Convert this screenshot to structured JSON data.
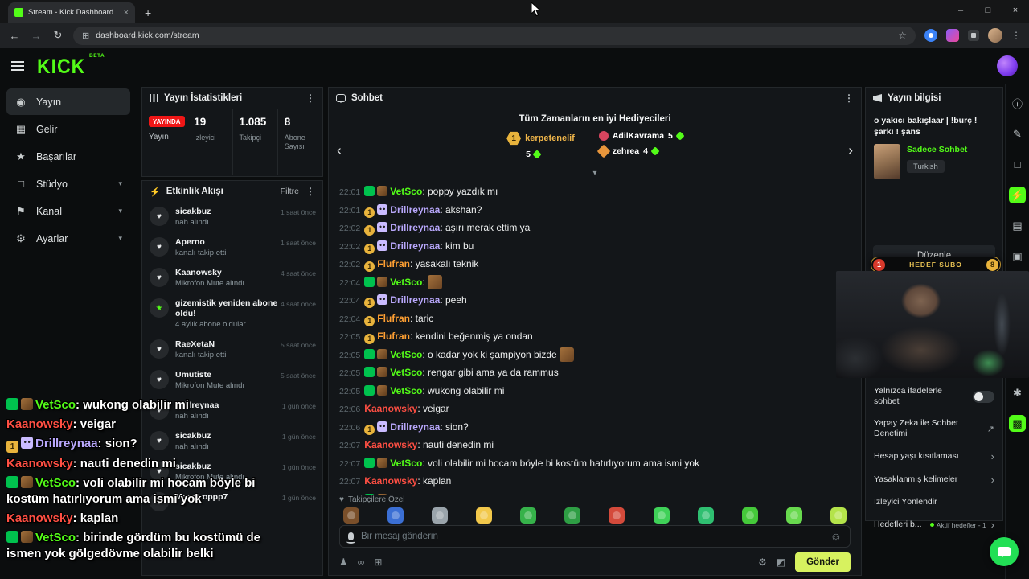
{
  "browser": {
    "tab_title": "Stream - Kick Dashboard",
    "url": "dashboard.kick.com/stream"
  },
  "app": {
    "logo": "KICK",
    "beta": "BETA"
  },
  "sidebar": {
    "items": [
      {
        "key": "yayin",
        "label": "Yayın",
        "glyph": "◉",
        "active": true,
        "chevron": false
      },
      {
        "key": "gelir",
        "label": "Gelir",
        "glyph": "▦",
        "active": false,
        "chevron": false
      },
      {
        "key": "basarilar",
        "label": "Başarılar",
        "glyph": "★",
        "active": false,
        "chevron": false
      },
      {
        "key": "studyo",
        "label": "Stüdyo",
        "glyph": "□",
        "active": false,
        "chevron": true
      },
      {
        "key": "kanal",
        "label": "Kanal",
        "glyph": "⚑",
        "active": false,
        "chevron": true
      },
      {
        "key": "ayarlar",
        "label": "Ayarlar",
        "glyph": "⚙",
        "active": false,
        "chevron": true
      }
    ]
  },
  "stats": {
    "title": "Yayın İstatistikleri",
    "live_badge": "YAYINDA",
    "live_label": "Yayın",
    "metrics": [
      {
        "value": "19",
        "label": "İzleyici"
      },
      {
        "value": "1.085",
        "label": "Takipçi"
      },
      {
        "value": "8",
        "label": "Abone Sayısı"
      }
    ]
  },
  "activity": {
    "title": "Etkinlik Akışı",
    "filter_label": "Filtre",
    "items": [
      {
        "icon": "heart",
        "user": "sicakbuz",
        "action": "nah alındı",
        "time": "1 saat önce"
      },
      {
        "icon": "heart",
        "user": "Aperno",
        "action": "kanalı takip etti",
        "time": "1 saat önce"
      },
      {
        "icon": "heart",
        "user": "Kaanowsky",
        "action": "Mikrofon Mute alındı",
        "time": "4 saat önce"
      },
      {
        "icon": "star",
        "user": "gizemistik yeniden abone oldu!",
        "action": "4 aylık abone oldular",
        "time": "4 saat önce"
      },
      {
        "icon": "heart",
        "user": "RaeXetaN",
        "action": "kanalı takip etti",
        "time": "5 saat önce"
      },
      {
        "icon": "heart",
        "user": "Umutiste",
        "action": "Mikrofon Mute alındı",
        "time": "5 saat önce"
      },
      {
        "icon": "heart",
        "user": "Drillreynaa",
        "action": "nah alındı",
        "time": "1 gün önce"
      },
      {
        "icon": "heart",
        "user": "sicakbuz",
        "action": "nah alındı",
        "time": "1 gün önce"
      },
      {
        "icon": "heart",
        "user": "sicakbuz",
        "action": "Mikrofon Mute alındı",
        "time": "1 gün önce"
      },
      {
        "icon": "heart",
        "user": "Maestroppp7",
        "action": "",
        "time": "1 gün önce"
      }
    ]
  },
  "chat": {
    "title": "Sohbet",
    "gifters": {
      "title": "Tüm Zamanların en iyi Hediyecileri",
      "top": {
        "rank": "1",
        "name": "kerpetenelif",
        "count": "5"
      },
      "others": [
        {
          "name": "AdilKavrama",
          "count": "5"
        },
        {
          "name": "zehrea",
          "count": "4"
        }
      ]
    },
    "messages": [
      {
        "time": "22:01",
        "user": "VetSco",
        "color": "#53fc18",
        "badges": [
          "mod",
          "pixel"
        ],
        "text": "poppy yazdık mı",
        "emote": false
      },
      {
        "time": "22:01",
        "user": "Drillreynaa",
        "color": "#b8a7fb",
        "badges": [
          "gift",
          "ghost"
        ],
        "text": "akshan?",
        "emote": false
      },
      {
        "time": "22:02",
        "user": "Drillreynaa",
        "color": "#b8a7fb",
        "badges": [
          "gift",
          "ghost"
        ],
        "text": "aşırı merak ettim ya",
        "emote": false
      },
      {
        "time": "22:02",
        "user": "Drillreynaa",
        "color": "#b8a7fb",
        "badges": [
          "gift",
          "ghost"
        ],
        "text": "kim bu",
        "emote": false
      },
      {
        "time": "22:02",
        "user": "Flufran",
        "color": "#ffa033",
        "badges": [
          "gift"
        ],
        "text": "yasakalı teknik",
        "emote": false
      },
      {
        "time": "22:04",
        "user": "VetSco",
        "color": "#53fc18",
        "badges": [
          "mod",
          "pixel"
        ],
        "text": "",
        "emote": true
      },
      {
        "time": "22:04",
        "user": "Drillreynaa",
        "color": "#b8a7fb",
        "badges": [
          "gift",
          "ghost"
        ],
        "text": "peeh",
        "emote": false
      },
      {
        "time": "22:04",
        "user": "Flufran",
        "color": "#ffa033",
        "badges": [
          "gift"
        ],
        "text": "taric",
        "emote": false
      },
      {
        "time": "22:05",
        "user": "Flufran",
        "color": "#ffa033",
        "badges": [
          "gift"
        ],
        "text": "kendini beğenmiş ya ondan",
        "emote": false
      },
      {
        "time": "22:05",
        "user": "VetSco",
        "color": "#53fc18",
        "badges": [
          "mod",
          "pixel"
        ],
        "text": "o kadar yok ki şampiyon bizde",
        "emote": true
      },
      {
        "time": "22:05",
        "user": "VetSco",
        "color": "#53fc18",
        "badges": [
          "mod",
          "pixel"
        ],
        "text": "rengar gibi ama ya da rammus",
        "emote": false
      },
      {
        "time": "22:05",
        "user": "VetSco",
        "color": "#53fc18",
        "badges": [
          "mod",
          "pixel"
        ],
        "text": "wukong olabilir mi",
        "emote": false
      },
      {
        "time": "22:06",
        "user": "Kaanowsky",
        "color": "#ff4f43",
        "badges": [],
        "text": "veigar",
        "emote": false
      },
      {
        "time": "22:06",
        "user": "Drillreynaa",
        "color": "#b8a7fb",
        "badges": [
          "gift",
          "ghost"
        ],
        "text": "sion?",
        "emote": false
      },
      {
        "time": "22:07",
        "user": "Kaanowsky",
        "color": "#ff4f43",
        "badges": [],
        "text": "nauti denedin mi",
        "emote": false
      },
      {
        "time": "22:07",
        "user": "VetSco",
        "color": "#53fc18",
        "badges": [
          "mod",
          "pixel"
        ],
        "text": "voli olabilir mi hocam böyle bi kostüm hatırlıyorum ama ismi yok",
        "emote": false
      },
      {
        "time": "22:07",
        "user": "Kaanowsky",
        "color": "#ff4f43",
        "badges": [],
        "text": "kaplan",
        "emote": false
      },
      {
        "time": "22:07",
        "user": "VetSco",
        "color": "#53fc18",
        "badges": [
          "mod",
          "pixel"
        ],
        "text": "birinde gördüm bu kostümü de ismen yok gölgedövme olabilir belki",
        "emote": false
      }
    ],
    "followers_label": "Takipçilere Özel",
    "emotes": [
      "#7a4f2a",
      "#3b6fd4",
      "#9aa4ab",
      "#f2c84b",
      "#36b24a",
      "#2e9e44",
      "#d44a3b",
      "#3fd158",
      "#2fbf71",
      "#45c93a",
      "#68d94e",
      "#b4e34a"
    ],
    "input_placeholder": "Bir mesaj gönderin",
    "send_label": "Gönder"
  },
  "info": {
    "title": "Yayın bilgisi",
    "stream_title": "o yakıcı bakışlaar | !burç !şarkı ! şans",
    "category": "Sadece Sohbet",
    "tag": "Turkish",
    "edit_label": "Düzenle",
    "goal": {
      "start": "1",
      "label": "HEDEF SUBO",
      "end": "8"
    },
    "settings": [
      {
        "label": "Yalnızca ifadelerle sohbet",
        "type": "toggle"
      },
      {
        "label": "Yapay Zeka ile Sohbet Denetimi",
        "type": "link"
      },
      {
        "label": "Hesap yaşı kısıtlaması",
        "type": "chevron"
      },
      {
        "label": "Yasaklanmış kelimeler",
        "type": "chevron"
      },
      {
        "label": "İzleyici Yönlendir",
        "type": "none"
      },
      {
        "label": "Hedefleri b...",
        "meta": "Aktif hedefler - 1",
        "type": "chevron"
      }
    ]
  },
  "overlay": {
    "messages": [
      {
        "user": "VetSco",
        "color": "#53fc18",
        "badges": [
          "mod",
          "pixel"
        ],
        "text": "wukong olabilir mi"
      },
      {
        "user": "Kaanowsky",
        "color": "#ff4f43",
        "badges": [],
        "text": "veigar"
      },
      {
        "user": "Drillreynaa",
        "color": "#b8a7fb",
        "badges": [
          "gift",
          "ghost"
        ],
        "text": "sion?"
      },
      {
        "user": "Kaanowsky",
        "color": "#ff4f43",
        "badges": [],
        "text": "nauti denedin mi"
      },
      {
        "user": "VetSco",
        "color": "#53fc18",
        "badges": [
          "mod",
          "pixel"
        ],
        "text": "voli olabilir mi hocam böyle bi kostüm hatırlıyorum ama ismi yok"
      },
      {
        "user": "Kaanowsky",
        "color": "#ff4f43",
        "badges": [],
        "text": "kaplan"
      },
      {
        "user": "VetSco",
        "color": "#53fc18",
        "badges": [
          "mod",
          "pixel"
        ],
        "text": "birinde gördüm bu kostümü de ismen yok gölgedövme olabilir belki"
      }
    ]
  },
  "strip": {
    "top_icons": [
      {
        "name": "info-circle",
        "glyph": "ⓘ",
        "active": false
      },
      {
        "name": "pencil",
        "glyph": "✎",
        "active": false
      },
      {
        "name": "monitor",
        "glyph": "□",
        "active": false
      },
      {
        "name": "bolt",
        "glyph": "⚡",
        "active": true
      },
      {
        "name": "layers",
        "glyph": "▤",
        "active": false
      },
      {
        "name": "widgets",
        "glyph": "▣",
        "active": false
      }
    ],
    "mid_icons": [
      {
        "name": "spark",
        "glyph": "✱",
        "active": false
      },
      {
        "name": "clips",
        "glyph": "▩",
        "active": true
      }
    ]
  },
  "colors": {
    "accent": "#53fc18",
    "live": "#f01616",
    "gold": "#e8b33c"
  }
}
